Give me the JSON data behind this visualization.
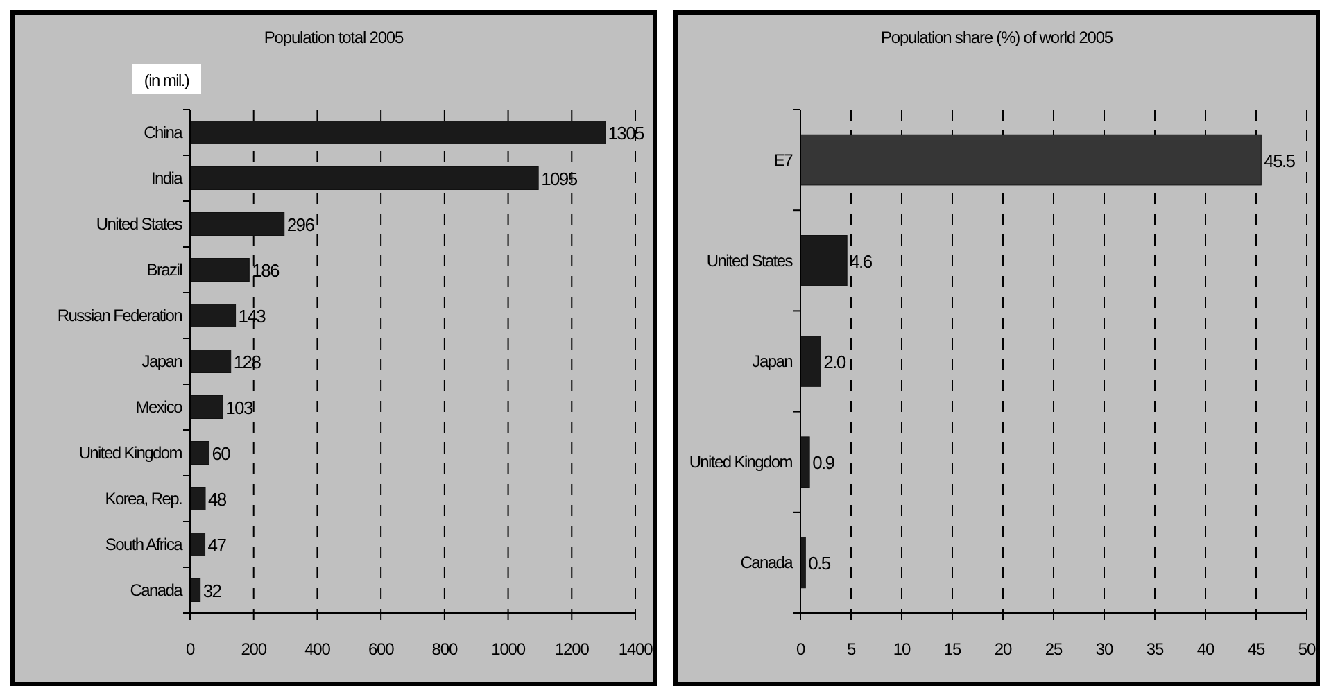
{
  "chart_data": [
    {
      "type": "bar",
      "orientation": "horizontal",
      "title": "Population total 2005",
      "annotations": [
        "(in mil.)"
      ],
      "categories": [
        "China",
        "India",
        "United States",
        "Brazil",
        "Russian Federation",
        "Japan",
        "Mexico",
        "United Kingdom",
        "Korea, Rep.",
        "South Africa",
        "Canada"
      ],
      "values": [
        1305,
        1095,
        296,
        186,
        143,
        128,
        103,
        60,
        48,
        47,
        32
      ],
      "color": "#1a1a1a",
      "xlim": [
        0,
        1400
      ],
      "xticks": [
        0,
        200,
        400,
        600,
        800,
        1000,
        1200,
        1400
      ],
      "grid": "x",
      "data_labels": true
    },
    {
      "type": "bar",
      "orientation": "horizontal",
      "title": "Population share (%) of world 2005",
      "categories": [
        "E7",
        "United States",
        "Japan",
        "United Kingdom",
        "Canada"
      ],
      "values": [
        45.5,
        4.6,
        2.0,
        0.9,
        0.5
      ],
      "value_labels": [
        "45.5",
        "4.6",
        "2.0",
        "0.9",
        "0.5"
      ],
      "colors": [
        "#363636",
        "#1a1a1a",
        "#1a1a1a",
        "#1a1a1a",
        "#1a1a1a"
      ],
      "xlim": [
        0,
        50
      ],
      "xticks": [
        0,
        5,
        10,
        15,
        20,
        25,
        30,
        35,
        40,
        45,
        50
      ],
      "grid": "x"
    }
  ]
}
